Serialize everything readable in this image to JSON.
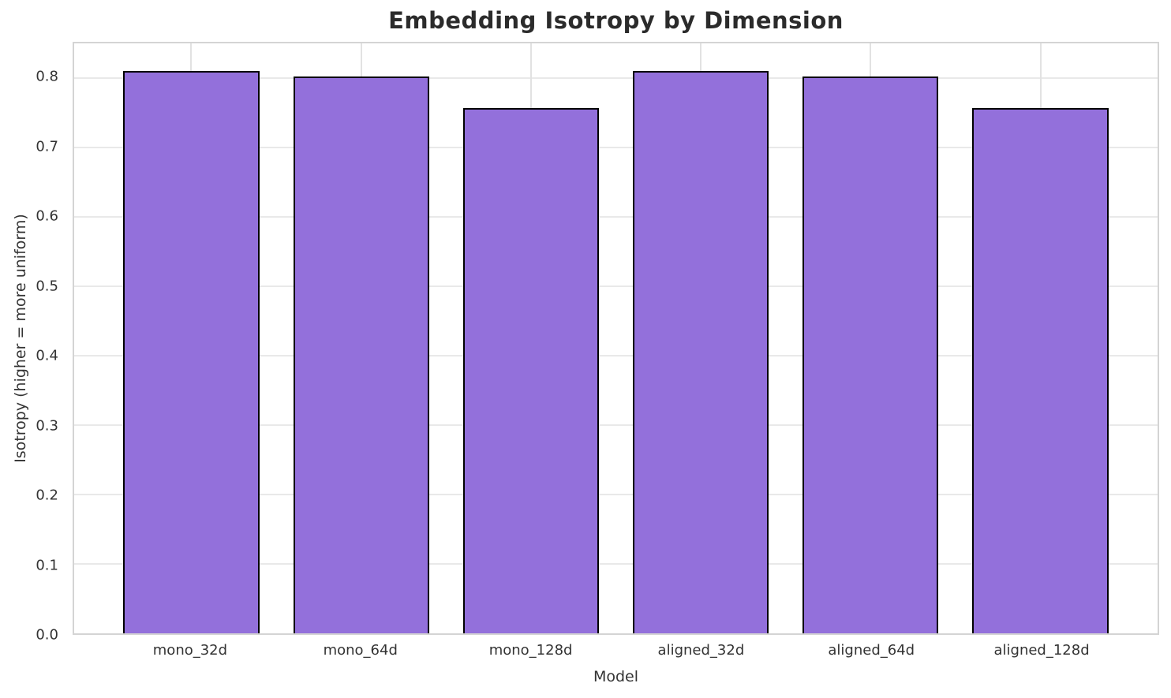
{
  "chart_data": {
    "type": "bar",
    "title": "Embedding Isotropy by Dimension",
    "xlabel": "Model",
    "ylabel": "Isotropy (higher = more uniform)",
    "categories": [
      "mono_32d",
      "mono_64d",
      "mono_128d",
      "aligned_32d",
      "aligned_64d",
      "aligned_128d"
    ],
    "values": [
      0.81,
      0.802,
      0.757,
      0.81,
      0.802,
      0.757
    ],
    "ylim": [
      0,
      0.85
    ],
    "yticks": [
      0.0,
      0.1,
      0.2,
      0.3,
      0.4,
      0.5,
      0.6,
      0.7,
      0.8
    ],
    "ytick_labels": [
      "0.0",
      "0.1",
      "0.2",
      "0.3",
      "0.4",
      "0.5",
      "0.6",
      "0.7",
      "0.8"
    ],
    "grid": true,
    "legend": null,
    "bar_relative_width": 0.8,
    "bar_color": "#9370DB",
    "bar_edge_color": "#000000"
  },
  "colors": {
    "background": "#ffffff",
    "grid_horizontal": "#e9e9e9",
    "grid_vertical": "#e2e2e2",
    "spine": "#d4d4d4",
    "title_text": "#2b2b2b",
    "tick_text": "#333333"
  }
}
